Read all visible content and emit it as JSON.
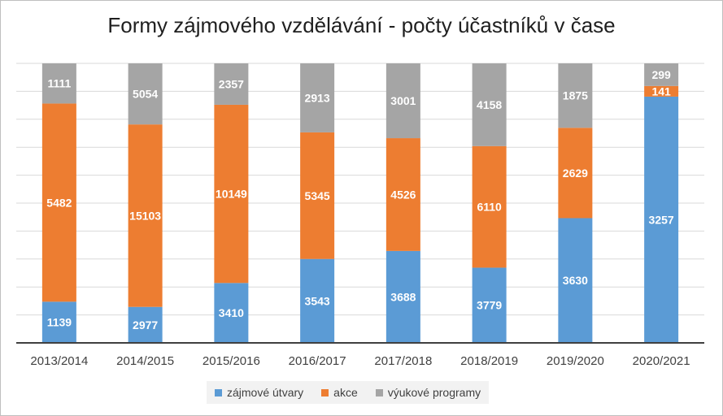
{
  "chart_data": {
    "type": "bar",
    "stacked": true,
    "normalized": true,
    "title": "Formy zájmového vzdělávání - počty účastníků v čase",
    "categories": [
      "2013/2014",
      "2014/2015",
      "2015/2016",
      "2016/2017",
      "2017/2018",
      "2018/2019",
      "2019/2020",
      "2020/2021"
    ],
    "series": [
      {
        "name": "zájmové útvary",
        "color": "#5b9bd5",
        "values": [
          1139,
          2977,
          3410,
          3543,
          3688,
          3779,
          3630,
          3257
        ]
      },
      {
        "name": "akce",
        "color": "#ed7d31",
        "values": [
          5482,
          15103,
          10149,
          5345,
          4526,
          6110,
          2629,
          141
        ]
      },
      {
        "name": "výukové programy",
        "color": "#a5a5a5",
        "values": [
          1111,
          5054,
          2357,
          2913,
          3001,
          4158,
          1875,
          299
        ]
      }
    ],
    "xlabel": "",
    "ylabel": "",
    "grid": true,
    "legend_position": "bottom"
  }
}
